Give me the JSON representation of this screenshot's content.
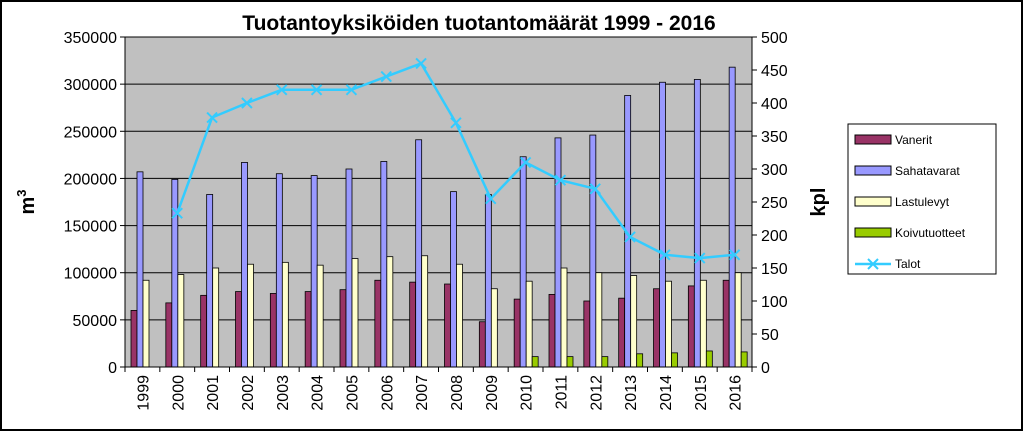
{
  "chart_data": {
    "type": "bar",
    "title": "Tuotantoyksiköiden tuotantomäärät 1999 - 2016",
    "ylabel": "m",
    "ylabel_superscript": "3",
    "y2label": "kpl",
    "ylim": [
      0,
      350000
    ],
    "y2lim": [
      0,
      500
    ],
    "yticks": [
      "0",
      "50000",
      "100000",
      "150000",
      "200000",
      "250000",
      "300000",
      "350000"
    ],
    "y2ticks": [
      "0",
      "50",
      "100",
      "150",
      "200",
      "250",
      "300",
      "350",
      "400",
      "450",
      "500"
    ],
    "ytick_values": [
      0,
      50000,
      100000,
      150000,
      200000,
      250000,
      300000,
      350000
    ],
    "y2tick_values": [
      0,
      50,
      100,
      150,
      200,
      250,
      300,
      350,
      400,
      450,
      500
    ],
    "categories": [
      "1999",
      "2000",
      "2001",
      "2002",
      "2003",
      "2004",
      "2005",
      "2006",
      "2007",
      "2008",
      "2009",
      "2010",
      "2011",
      "2012",
      "2013",
      "2014",
      "2015",
      "2016"
    ],
    "grid": true,
    "legend_position": "right",
    "series": [
      {
        "name": "Vanerit",
        "type": "bar",
        "axis": "left",
        "color": "#993366",
        "values": [
          60000,
          68000,
          76000,
          80000,
          78000,
          80000,
          82000,
          92000,
          90000,
          88000,
          48000,
          72000,
          77000,
          70000,
          73000,
          83000,
          86000,
          92000
        ]
      },
      {
        "name": "Sahatavarat",
        "type": "bar",
        "axis": "left",
        "color": "#9999ff",
        "values": [
          207000,
          199000,
          183000,
          217000,
          205000,
          203000,
          210000,
          218000,
          241000,
          186000,
          183000,
          223000,
          243000,
          246000,
          288000,
          302000,
          305000,
          318000
        ]
      },
      {
        "name": "Lastulevyt",
        "type": "bar",
        "axis": "left",
        "color": "#ffffcc",
        "values": [
          92000,
          98000,
          105000,
          109000,
          111000,
          108000,
          115000,
          117000,
          118000,
          109000,
          83000,
          91000,
          105000,
          100000,
          97000,
          91000,
          92000,
          100000
        ]
      },
      {
        "name": "Koivutuotteet",
        "type": "bar",
        "axis": "left",
        "color": "#99cc00",
        "values": [
          0,
          0,
          0,
          0,
          0,
          0,
          0,
          0,
          0,
          0,
          0,
          11000,
          11000,
          11000,
          14000,
          15000,
          17000,
          16000
        ]
      },
      {
        "name": "Talot",
        "type": "line",
        "axis": "right",
        "color": "#33ccff",
        "values": [
          null,
          233,
          378,
          400,
          420,
          420,
          420,
          440,
          460,
          370,
          255,
          310,
          283,
          270,
          197,
          170,
          165,
          170
        ]
      }
    ]
  }
}
